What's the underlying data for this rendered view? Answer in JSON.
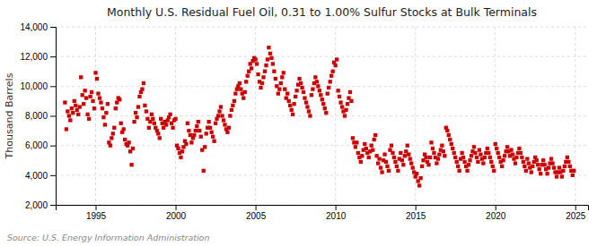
{
  "chart_data": {
    "type": "scatter",
    "title": "Monthly U.S. Residual Fuel Oil, 0.31 to 1.00% Sulfur Stocks at Bulk Terminals",
    "ylabel": "Thousand Barrels",
    "source": "Source: U.S. Energy Information Administration",
    "color": "#cc0000",
    "marker": "square",
    "grid": true,
    "xlim": [
      1992.5,
      2025.8
    ],
    "ylim": [
      2000,
      14000
    ],
    "xticks": [
      1995,
      2000,
      2005,
      2010,
      2015,
      2020,
      2025
    ],
    "yticks": [
      {
        "value": 2000,
        "label": "2,000"
      },
      {
        "value": 4000,
        "label": "4,000"
      },
      {
        "value": 6000,
        "label": "6,000"
      },
      {
        "value": 8000,
        "label": "8,000"
      },
      {
        "value": 10000,
        "label": "10,000"
      },
      {
        "value": 12000,
        "label": "12,000"
      },
      {
        "value": 14000,
        "label": "14,000"
      }
    ],
    "x": [
      1993.083,
      1993.167,
      1993.25,
      1993.333,
      1993.417,
      1993.5,
      1993.583,
      1993.667,
      1993.75,
      1993.833,
      1993.917,
      1994.0,
      1994.083,
      1994.167,
      1994.25,
      1994.333,
      1994.417,
      1994.5,
      1994.583,
      1994.667,
      1994.75,
      1994.833,
      1994.917,
      1995.0,
      1995.083,
      1995.167,
      1995.25,
      1995.333,
      1995.417,
      1995.5,
      1995.583,
      1995.667,
      1995.75,
      1995.833,
      1995.917,
      1996.0,
      1996.083,
      1996.167,
      1996.25,
      1996.333,
      1996.417,
      1996.5,
      1996.583,
      1996.667,
      1996.75,
      1996.833,
      1996.917,
      1997.0,
      1997.083,
      1997.167,
      1997.25,
      1997.333,
      1997.417,
      1997.5,
      1997.583,
      1997.667,
      1997.75,
      1997.833,
      1997.917,
      1998.0,
      1998.083,
      1998.167,
      1998.25,
      1998.333,
      1998.417,
      1998.5,
      1998.583,
      1998.667,
      1998.75,
      1998.833,
      1998.917,
      1999.0,
      1999.083,
      1999.167,
      1999.25,
      1999.333,
      1999.417,
      1999.5,
      1999.583,
      1999.667,
      1999.75,
      1999.833,
      1999.917,
      2000.0,
      2000.083,
      2000.167,
      2000.25,
      2000.333,
      2000.417,
      2000.5,
      2000.583,
      2000.667,
      2000.75,
      2000.833,
      2000.917,
      2001.0,
      2001.083,
      2001.167,
      2001.25,
      2001.333,
      2001.417,
      2001.5,
      2001.583,
      2001.667,
      2001.75,
      2001.833,
      2001.917,
      2002.0,
      2002.083,
      2002.167,
      2002.25,
      2002.333,
      2002.417,
      2002.5,
      2002.583,
      2002.667,
      2002.75,
      2002.833,
      2002.917,
      2003.0,
      2003.083,
      2003.167,
      2003.25,
      2003.333,
      2003.417,
      2003.5,
      2003.583,
      2003.667,
      2003.75,
      2003.833,
      2003.917,
      2004.0,
      2004.083,
      2004.167,
      2004.25,
      2004.333,
      2004.417,
      2004.5,
      2004.583,
      2004.667,
      2004.75,
      2004.833,
      2004.917,
      2005.0,
      2005.083,
      2005.167,
      2005.25,
      2005.333,
      2005.417,
      2005.5,
      2005.583,
      2005.667,
      2005.75,
      2005.833,
      2005.917,
      2006.0,
      2006.083,
      2006.167,
      2006.25,
      2006.333,
      2006.417,
      2006.5,
      2006.583,
      2006.667,
      2006.75,
      2006.833,
      2006.917,
      2007.0,
      2007.083,
      2007.167,
      2007.25,
      2007.333,
      2007.417,
      2007.5,
      2007.583,
      2007.667,
      2007.75,
      2007.833,
      2007.917,
      2008.0,
      2008.083,
      2008.167,
      2008.25,
      2008.333,
      2008.417,
      2008.5,
      2008.583,
      2008.667,
      2008.75,
      2008.833,
      2008.917,
      2009.0,
      2009.083,
      2009.167,
      2009.25,
      2009.333,
      2009.417,
      2009.5,
      2009.583,
      2009.667,
      2009.75,
      2009.833,
      2009.917,
      2010.0,
      2010.083,
      2010.167,
      2010.25,
      2010.333,
      2010.417,
      2010.5,
      2010.583,
      2010.667,
      2010.75,
      2010.833,
      2010.917,
      2011.0,
      2011.083,
      2011.167,
      2011.25,
      2011.333,
      2011.417,
      2011.5,
      2011.583,
      2011.667,
      2011.75,
      2011.833,
      2011.917,
      2012.0,
      2012.083,
      2012.167,
      2012.25,
      2012.333,
      2012.417,
      2012.5,
      2012.583,
      2012.667,
      2012.75,
      2012.833,
      2012.917,
      2013.0,
      2013.083,
      2013.167,
      2013.25,
      2013.333,
      2013.417,
      2013.5,
      2013.583,
      2013.667,
      2013.75,
      2013.833,
      2013.917,
      2014.0,
      2014.083,
      2014.167,
      2014.25,
      2014.333,
      2014.417,
      2014.5,
      2014.583,
      2014.667,
      2014.75,
      2014.833,
      2014.917,
      2015.0,
      2015.083,
      2015.167,
      2015.25,
      2015.333,
      2015.417,
      2015.5,
      2015.583,
      2015.667,
      2015.75,
      2015.833,
      2015.917,
      2016.0,
      2016.083,
      2016.167,
      2016.25,
      2016.333,
      2016.417,
      2016.5,
      2016.583,
      2016.667,
      2016.75,
      2016.833,
      2016.917,
      2017.0,
      2017.083,
      2017.167,
      2017.25,
      2017.333,
      2017.417,
      2017.5,
      2017.583,
      2017.667,
      2017.75,
      2017.833,
      2017.917,
      2018.0,
      2018.083,
      2018.167,
      2018.25,
      2018.333,
      2018.417,
      2018.5,
      2018.583,
      2018.667,
      2018.75,
      2018.833,
      2018.917,
      2019.0,
      2019.083,
      2019.167,
      2019.25,
      2019.333,
      2019.417,
      2019.5,
      2019.583,
      2019.667,
      2019.75,
      2019.833,
      2019.917,
      2020.0,
      2020.083,
      2020.167,
      2020.25,
      2020.333,
      2020.417,
      2020.5,
      2020.583,
      2020.667,
      2020.75,
      2020.833,
      2020.917,
      2021.0,
      2021.083,
      2021.167,
      2021.25,
      2021.333,
      2021.417,
      2021.5,
      2021.583,
      2021.667,
      2021.75,
      2021.833,
      2021.917,
      2022.0,
      2022.083,
      2022.167,
      2022.25,
      2022.333,
      2022.417,
      2022.5,
      2022.583,
      2022.667,
      2022.75,
      2022.833,
      2022.917,
      2023.0,
      2023.083,
      2023.167,
      2023.25,
      2023.333,
      2023.417,
      2023.5,
      2023.583,
      2023.667,
      2023.75,
      2023.833,
      2023.917,
      2024.0,
      2024.083,
      2024.167,
      2024.25,
      2024.333,
      2024.417,
      2024.5,
      2024.583,
      2024.667,
      2024.75,
      2024.833,
      2024.917
    ],
    "values": [
      8900,
      7100,
      8300,
      8000,
      7700,
      8500,
      8200,
      9000,
      8700,
      8400,
      8100,
      8600,
      10600,
      9400,
      8800,
      9700,
      9200,
      8100,
      7800,
      9300,
      9600,
      9000,
      8500,
      10900,
      10500,
      9500,
      9200,
      8900,
      8500,
      7900,
      7400,
      8200,
      8800,
      6200,
      6000,
      6500,
      6800,
      7200,
      8500,
      8900,
      9200,
      9100,
      7500,
      6900,
      7100,
      6400,
      6100,
      6000,
      6200,
      5600,
      4700,
      5800,
      7600,
      8200,
      7900,
      8600,
      9300,
      9600,
      9800,
      10200,
      8700,
      8300,
      7800,
      7200,
      7600,
      8100,
      7800,
      7500,
      7200,
      7000,
      6800,
      6500,
      7800,
      7500,
      7200,
      7600,
      7400,
      7700,
      7900,
      8100,
      7500,
      7200,
      7700,
      7800,
      6000,
      5800,
      5500,
      5200,
      5600,
      5900,
      6300,
      6100,
      7500,
      7000,
      6700,
      6200,
      6500,
      6700,
      7000,
      7300,
      7600,
      7000,
      6600,
      5700,
      4300,
      5900,
      6800,
      7200,
      7600,
      7200,
      6900,
      6600,
      6300,
      7500,
      7800,
      8000,
      8300,
      8600,
      8000,
      7700,
      7400,
      7100,
      6900,
      7200,
      8000,
      8400,
      8700,
      9000,
      9500,
      9800,
      10000,
      10200,
      9800,
      9500,
      9200,
      9600,
      10300,
      10700,
      11000,
      11500,
      11200,
      11700,
      11900,
      11800,
      11500,
      10800,
      10300,
      9900,
      10200,
      10600,
      11000,
      11400,
      11800,
      12600,
      12200,
      11900,
      11500,
      11000,
      10500,
      10000,
      9500,
      9800,
      10200,
      10600,
      10900,
      9800,
      9200,
      9500,
      9000,
      8700,
      8400,
      8100,
      8800,
      9300,
      9700,
      10100,
      10500,
      10200,
      9900,
      9600,
      9200,
      8900,
      8600,
      8300,
      8000,
      9400,
      9800,
      10200,
      10600,
      10300,
      10000,
      9700,
      9400,
      9100,
      8800,
      8500,
      8200,
      9500,
      9900,
      10300,
      10700,
      11000,
      11600,
      11400,
      11800,
      9700,
      9300,
      8900,
      8600,
      8300,
      8000,
      8400,
      8800,
      9200,
      9600,
      9000,
      6500,
      6200,
      5900,
      6200,
      5500,
      5200,
      4900,
      5300,
      5700,
      6100,
      5800,
      5500,
      5200,
      5600,
      6000,
      5700,
      6400,
      6700,
      5300,
      4800,
      5100,
      4500,
      4200,
      5000,
      5400,
      4900,
      4600,
      4300,
      5700,
      6000,
      5500,
      5200,
      4900,
      4600,
      4300,
      5100,
      5500,
      5000,
      4700,
      5300,
      5600,
      6000,
      5400,
      5100,
      4800,
      4500,
      4200,
      3900,
      4100,
      3600,
      3300,
      3800,
      4600,
      5000,
      5400,
      5200,
      4900,
      4700,
      5200,
      6200,
      5800,
      5500,
      5200,
      4800,
      5100,
      5400,
      5700,
      6000,
      5600,
      5300,
      7200,
      7000,
      6700,
      6400,
      6100,
      5800,
      5500,
      5200,
      4900,
      4600,
      4300,
      5100,
      5500,
      5200,
      4900,
      4600,
      4300,
      4700,
      5000,
      5300,
      5600,
      5900,
      5500,
      5200,
      4900,
      5700,
      5400,
      5100,
      4800,
      5200,
      5500,
      5800,
      5500,
      5200,
      4900,
      4600,
      4300,
      6100,
      5800,
      5500,
      5200,
      4900,
      4600,
      5000,
      5300,
      5600,
      5900,
      5600,
      5300,
      5700,
      5400,
      5100,
      4800,
      5200,
      5500,
      5800,
      5500,
      5200,
      4900,
      4600,
      4300,
      5100,
      4800,
      4500,
      4200,
      4600,
      4900,
      5200,
      5000,
      4700,
      4400,
      4100,
      4700,
      5000,
      4700,
      4400,
      4100,
      4500,
      4800,
      5100,
      4800,
      4500,
      4200,
      3900,
      4200,
      4500,
      4200,
      3900,
      4300,
      4600,
      4900,
      5200,
      4900,
      4600,
      4300,
      4000,
      4300
    ]
  }
}
